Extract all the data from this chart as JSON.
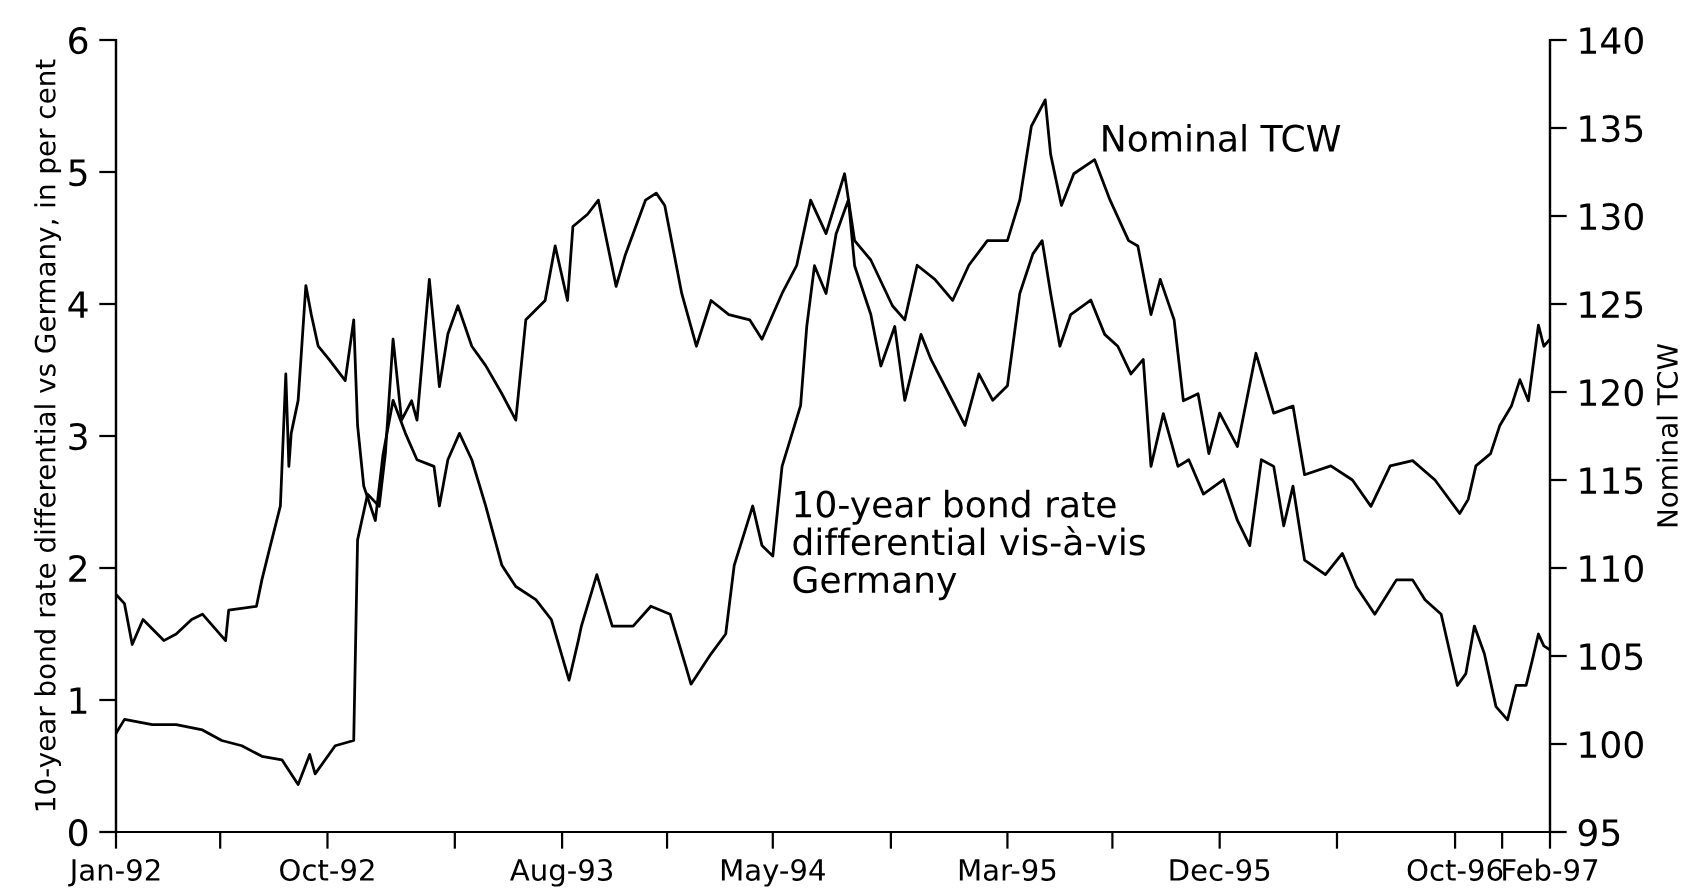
{
  "chart_data": {
    "type": "line",
    "ylabel": "10-year bond rate differential vs Germany, in per cent",
    "y2label": "Nominal TCW",
    "xlim": [
      "1992-01",
      "1997-02"
    ],
    "xticks": [
      {
        "value": "1992-01",
        "label": "Jan-92"
      },
      {
        "value": "1992-05-15",
        "label": null
      },
      {
        "value": "1992-10",
        "label": "Oct-92"
      },
      {
        "value": "1993-03-15",
        "label": null
      },
      {
        "value": "1993-08",
        "label": "Aug-93"
      },
      {
        "value": "1993-12-15",
        "label": null
      },
      {
        "value": "1994-05",
        "label": "May-94"
      },
      {
        "value": "1994-10",
        "label": null
      },
      {
        "value": "1995-03",
        "label": "Mar-95"
      },
      {
        "value": "1995-07-15",
        "label": null
      },
      {
        "value": "1995-12",
        "label": "Dec-95"
      },
      {
        "value": "1996-05",
        "label": null
      },
      {
        "value": "1996-10",
        "label": "Oct-96"
      },
      {
        "value": "1996-12",
        "label": null
      },
      {
        "value": "1997-02",
        "label": "Feb-97"
      }
    ],
    "ylim": [
      0,
      6
    ],
    "yticks": [
      0,
      1,
      2,
      3,
      4,
      5,
      6
    ],
    "y2lim": [
      95,
      140
    ],
    "y2ticks": [
      95,
      100,
      105,
      110,
      115,
      120,
      125,
      130,
      135,
      140
    ],
    "grid": false,
    "legend": false,
    "marker": "none",
    "line_style": "solid",
    "series": [
      {
        "name": "10-year bond rate\ndifferential vis-à-vis\nGermany",
        "color": "#000000",
        "x": [
          "1992-01-01",
          "1992-01-12",
          "1992-01-22",
          "1992-02-05",
          "1992-03-03",
          "1992-03-19",
          "1992-04-08",
          "1992-04-22",
          "1992-05-22",
          "1992-05-26",
          "1992-07-01",
          "1992-07-08",
          "1992-07-19",
          "1992-08-01",
          "1992-08-08",
          "1992-08-12",
          "1992-08-15",
          "1992-08-24",
          "1992-09-03",
          "1992-09-10",
          "1992-09-19",
          "1992-10-03",
          "1992-10-24",
          "1992-11-04",
          "1992-11-09",
          "1992-11-17",
          "1992-12-02",
          "1992-12-12",
          "1992-12-25",
          "1993-01-10",
          "1993-01-25",
          "1993-02-16",
          "1993-02-23",
          "1993-03-06",
          "1993-03-21",
          "1993-04-06",
          "1993-04-24",
          "1993-05-15",
          "1993-06-02",
          "1993-06-28",
          "1993-07-18",
          "1993-08-10",
          "1993-08-22",
          "1993-08-26",
          "1993-09-15",
          "1993-10-05",
          "1993-11-01",
          "1993-11-24",
          "1993-12-19",
          "1994-01-08",
          "1994-01-15",
          "1994-02-10",
          "1994-03-01",
          "1994-03-12",
          "1994-04-05",
          "1994-04-17",
          "1994-05-01",
          "1994-05-13",
          "1994-06-06",
          "1994-06-14",
          "1994-06-24",
          "1994-07-09",
          "1994-07-22",
          "1994-08-07",
          "1994-08-15",
          "1994-09-05",
          "1994-09-18",
          "1994-10-06",
          "1994-10-19",
          "1994-11-09",
          "1994-11-22",
          "1994-12-15",
          "1995-01-05",
          "1995-01-23",
          "1995-02-10",
          "1995-03-01",
          "1995-03-17",
          "1995-04-03",
          "1995-04-15",
          "1995-04-26",
          "1995-05-08",
          "1995-05-22",
          "1995-06-17",
          "1995-07-05",
          "1995-07-22",
          "1995-08-08",
          "1995-08-24",
          "1995-09-03",
          "1995-09-19",
          "1995-10-08",
          "1995-10-22",
          "1995-11-10",
          "1995-12-06",
          "1995-12-24",
          "1996-01-09",
          "1996-01-24",
          "1996-02-09",
          "1996-02-22",
          "1996-03-05",
          "1996-03-20",
          "1996-04-16",
          "1996-05-08",
          "1996-05-26",
          "1996-06-19",
          "1996-07-17",
          "1996-08-07",
          "1996-08-23",
          "1996-09-13",
          "1996-10-04",
          "1996-10-15",
          "1996-10-26",
          "1996-11-08",
          "1996-11-23",
          "1996-12-08",
          "1996-12-19",
          "1997-01-01",
          "1997-01-09",
          "1997-01-17",
          "1997-01-24",
          "1997-02-01"
        ],
        "values": [
          1.8,
          1.73,
          1.42,
          1.61,
          1.45,
          1.5,
          1.61,
          1.65,
          1.45,
          1.68,
          1.71,
          1.91,
          2.17,
          2.47,
          3.47,
          2.77,
          3.02,
          3.27,
          4.14,
          3.92,
          3.68,
          3.58,
          3.42,
          3.88,
          3.08,
          2.62,
          2.36,
          2.86,
          3.27,
          3.02,
          2.82,
          2.77,
          2.47,
          2.82,
          3.02,
          2.82,
          2.47,
          2.02,
          1.86,
          1.76,
          1.61,
          1.15,
          1.45,
          1.56,
          1.95,
          1.56,
          1.56,
          1.71,
          1.65,
          1.26,
          1.12,
          1.35,
          1.5,
          2.02,
          2.47,
          2.17,
          2.09,
          2.77,
          3.23,
          3.83,
          4.29,
          4.08,
          4.53,
          4.79,
          4.29,
          3.92,
          3.53,
          3.83,
          3.27,
          3.77,
          3.58,
          3.32,
          3.08,
          3.47,
          3.27,
          3.38,
          4.08,
          4.38,
          4.48,
          4.08,
          3.68,
          3.92,
          4.03,
          3.77,
          3.68,
          3.47,
          3.58,
          2.77,
          3.17,
          2.77,
          2.82,
          2.56,
          2.67,
          2.36,
          2.17,
          2.82,
          2.77,
          2.32,
          2.62,
          2.06,
          1.95,
          2.11,
          1.86,
          1.65,
          1.91,
          1.91,
          1.76,
          1.65,
          1.11,
          1.2,
          1.56,
          1.35,
          0.95,
          0.85,
          1.11,
          1.11,
          1.3,
          1.5,
          1.41,
          1.38
        ]
      },
      {
        "name": "Nominal TCW",
        "color": "#000000",
        "axis": "y2",
        "x": [
          "1992-01-01",
          "1992-01-12",
          "1992-02-17",
          "1992-03-19",
          "1992-04-22",
          "1992-05-17",
          "1992-06-12",
          "1992-07-08",
          "1992-08-03",
          "1992-08-24",
          "1992-09-08",
          "1992-09-15",
          "1992-10-11",
          "1992-11-04",
          "1992-11-09",
          "1992-11-22",
          "1992-12-07",
          "1992-12-15",
          "1992-12-25",
          "1993-01-05",
          "1993-01-18",
          "1993-01-25",
          "1993-02-10",
          "1993-02-23",
          "1993-03-06",
          "1993-03-19",
          "1993-04-06",
          "1993-04-24",
          "1993-05-15",
          "1993-06-02",
          "1993-06-15",
          "1993-07-10",
          "1993-07-23",
          "1993-08-08",
          "1993-08-15",
          "1993-09-03",
          "1993-09-17",
          "1993-10-10",
          "1993-10-22",
          "1993-11-17",
          "1993-12-01",
          "1993-12-12",
          "1994-01-03",
          "1994-01-22",
          "1994-02-10",
          "1994-03-05",
          "1994-04-01",
          "1994-04-17",
          "1994-05-13",
          "1994-06-01",
          "1994-06-19",
          "1994-07-09",
          "1994-08-02",
          "1994-08-15",
          "1994-09-05",
          "1994-10-03",
          "1994-10-19",
          "1994-11-04",
          "1994-11-27",
          "1994-12-20",
          "1995-01-10",
          "1995-02-03",
          "1995-03-01",
          "1995-03-17",
          "1995-04-01",
          "1995-04-19",
          "1995-04-26",
          "1995-05-10",
          "1995-05-26",
          "1995-06-22",
          "1995-07-12",
          "1995-08-05",
          "1995-08-17",
          "1995-09-03",
          "1995-09-15",
          "1995-10-03",
          "1995-10-15",
          "1995-11-03",
          "1995-11-17",
          "1995-12-01",
          "1995-12-24",
          "1996-01-17",
          "1996-02-09",
          "1996-03-05",
          "1996-03-20",
          "1996-04-23",
          "1996-05-21",
          "1996-06-14",
          "1996-07-09",
          "1996-08-07",
          "1996-09-05",
          "1996-10-07",
          "1996-10-18",
          "1996-10-28",
          "1996-11-16",
          "1996-11-28",
          "1996-12-13",
          "1996-12-24",
          "1997-01-04",
          "1997-01-17",
          "1997-01-24",
          "1997-02-01"
        ],
        "values": [
          100.6,
          101.4,
          101.1,
          101.1,
          100.8,
          100.2,
          99.9,
          99.3,
          99.1,
          97.7,
          99.4,
          98.3,
          99.9,
          100.2,
          111.6,
          114.2,
          113.5,
          116.5,
          123.0,
          118.4,
          119.5,
          118.4,
          126.4,
          120.3,
          123.3,
          124.9,
          122.6,
          121.5,
          119.9,
          118.4,
          124.1,
          125.2,
          128.3,
          125.2,
          129.4,
          130.1,
          130.9,
          126.0,
          127.8,
          130.9,
          131.3,
          130.6,
          125.6,
          122.6,
          125.2,
          124.4,
          124.1,
          123.0,
          125.6,
          127.2,
          130.9,
          129.0,
          132.4,
          128.6,
          127.5,
          124.9,
          124.1,
          127.2,
          126.4,
          125.2,
          127.2,
          128.6,
          128.6,
          130.9,
          135.1,
          136.6,
          133.5,
          130.6,
          132.4,
          133.2,
          130.9,
          128.6,
          128.3,
          124.4,
          126.4,
          124.1,
          119.5,
          119.9,
          116.5,
          118.8,
          116.9,
          122.2,
          118.8,
          119.2,
          115.3,
          115.8,
          115.0,
          113.5,
          115.8,
          116.1,
          115.0,
          113.1,
          113.9,
          115.8,
          116.5,
          118.1,
          119.2,
          120.7,
          119.5,
          123.8,
          122.6,
          123.0
        ]
      }
    ]
  }
}
